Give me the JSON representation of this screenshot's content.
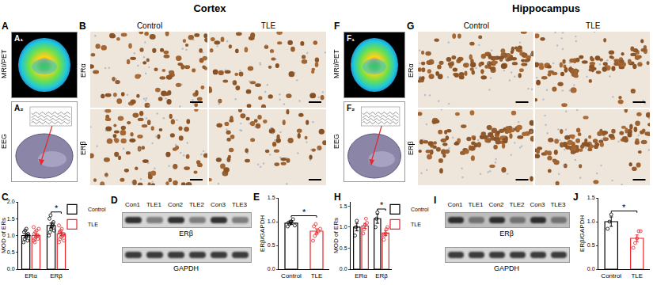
{
  "headers": [
    "Cortex",
    "Hippocampus"
  ],
  "scan_panels": [
    {
      "letter": "A",
      "rows": [
        "MRI/PET",
        "EEG"
      ],
      "insets": [
        "A₁",
        "A₂"
      ]
    },
    {
      "letter": "F",
      "rows": [
        "MRI/PET",
        "EEG"
      ],
      "insets": [
        "F₁",
        "F₂"
      ]
    }
  ],
  "stain_panels": [
    {
      "letter": "B",
      "columns": [
        "Control",
        "TLE"
      ],
      "rows": [
        "ERα",
        "ERβ"
      ]
    },
    {
      "letter": "G",
      "columns": [
        "Control",
        "TLE"
      ],
      "rows": [
        "ERα",
        "ERβ"
      ]
    }
  ],
  "blot_panels": [
    {
      "letter": "D",
      "lanes": [
        "Con1",
        "TLE1",
        "Con2",
        "TLE2",
        "Con3",
        "TLE3"
      ],
      "rows": [
        "ERβ",
        "GAPDH"
      ]
    },
    {
      "letter": "I",
      "lanes": [
        "Con1",
        "TLE1",
        "Con2",
        "TLE2",
        "Con3",
        "TLE3"
      ],
      "rows": [
        "ERβ",
        "GAPDH"
      ]
    }
  ],
  "chart_data": [
    {
      "type": "bar",
      "title": "C",
      "ylabel": "MOD of ERs",
      "categories": [
        "ERα",
        "ERβ"
      ],
      "series": [
        {
          "name": "Control",
          "color": "#000000",
          "values": [
            1.0,
            1.3
          ],
          "errors": [
            0.05,
            0.07
          ],
          "points": [
            [
              0.8,
              0.9,
              0.95,
              1.0,
              1.05,
              1.1,
              1.15,
              1.2,
              0.85,
              1.0
            ],
            [
              1.0,
              1.1,
              1.2,
              1.3,
              1.4,
              1.5,
              1.6,
              1.25,
              1.35,
              1.15
            ]
          ]
        },
        {
          "name": "TLE",
          "color": "#e8262b",
          "values": [
            1.0,
            1.05
          ],
          "errors": [
            0.04,
            0.05
          ],
          "points": [
            [
              0.85,
              0.9,
              0.95,
              1.0,
              1.0,
              1.05,
              1.1,
              1.15,
              0.9,
              1.2,
              1.25,
              0.8
            ],
            [
              0.8,
              0.9,
              0.95,
              1.0,
              1.05,
              1.1,
              1.15,
              1.2,
              1.0,
              0.85,
              1.3,
              1.1
            ]
          ]
        }
      ],
      "ylim": [
        0,
        2.0
      ],
      "yticks": [
        {
          "value": 0,
          "label": "0.0"
        },
        {
          "value": 0.5,
          "label": "0.5"
        },
        {
          "value": 1.0,
          "label": "1.0"
        },
        {
          "value": 1.5,
          "label": "1.5"
        },
        {
          "value": 2.0,
          "label": "2.0"
        }
      ],
      "legend": "upper right",
      "annotations": [
        {
          "text": "*",
          "categories": [
            "ERβ"
          ]
        }
      ]
    },
    {
      "type": "bar",
      "title": "E",
      "ylabel": "ERβ/GAPDH",
      "categories": [
        "Control",
        "TLE"
      ],
      "values": [
        0.97,
        0.8
      ],
      "errors": [
        0.03,
        0.05
      ],
      "colors": [
        "#000000",
        "#e8262b"
      ],
      "points": [
        [
          0.9,
          0.95,
          1.0,
          1.05,
          0.92,
          0.98,
          1.0
        ],
        [
          0.6,
          0.7,
          0.75,
          0.8,
          0.85,
          0.9,
          0.95
        ]
      ],
      "ylim": [
        0,
        1.5
      ],
      "yticks": [
        {
          "value": 0,
          "label": "0.0"
        },
        {
          "value": 0.5,
          "label": "0.5"
        },
        {
          "value": 1.0,
          "label": "1.0"
        },
        {
          "value": 1.5,
          "label": "1.5"
        }
      ],
      "annotations": [
        {
          "text": "*",
          "categories": [
            "Control",
            "TLE"
          ]
        }
      ]
    },
    {
      "type": "bar",
      "title": "H",
      "ylabel": "MOD of ERs",
      "categories": [
        "ERα",
        "ERβ"
      ],
      "series": [
        {
          "name": "Control",
          "color": "#000000",
          "values": [
            1.0,
            1.2
          ],
          "errors": [
            0.09,
            0.11
          ],
          "points": [
            [
              0.8,
              1.0,
              1.15
            ],
            [
              1.0,
              1.2,
              1.35
            ]
          ]
        },
        {
          "name": "TLE",
          "color": "#e8262b",
          "values": [
            1.03,
            0.86
          ],
          "errors": [
            0.06,
            0.06
          ],
          "points": [
            [
              0.85,
              0.95,
              1.05,
              1.2,
              1.1
            ],
            [
              0.7,
              0.8,
              0.85,
              0.95,
              1.0
            ]
          ]
        }
      ],
      "ylim": [
        0,
        1.6
      ],
      "yticks": [
        {
          "value": 0,
          "label": "0.0"
        },
        {
          "value": 0.5,
          "label": "0.5"
        },
        {
          "value": 1.0,
          "label": "1.0"
        },
        {
          "value": 1.5,
          "label": "1.5"
        }
      ],
      "legend": "upper right",
      "annotations": [
        {
          "text": "*",
          "categories": [
            "ERβ"
          ]
        }
      ]
    },
    {
      "type": "bar",
      "title": "J",
      "ylabel": "ERβ/GAPDH",
      "categories": [
        "Control",
        "TLE"
      ],
      "values": [
        1.0,
        0.65
      ],
      "errors": [
        0.1,
        0.07
      ],
      "colors": [
        "#000000",
        "#e8262b"
      ],
      "points": [
        [
          0.85,
          1.0,
          1.15
        ],
        [
          0.45,
          0.55,
          0.65,
          0.8,
          0.8
        ]
      ],
      "ylim": [
        0,
        1.5
      ],
      "yticks": [
        {
          "value": 0,
          "label": "0.0"
        },
        {
          "value": 0.5,
          "label": "0.5"
        },
        {
          "value": 1.0,
          "label": "1.0"
        },
        {
          "value": 1.5,
          "label": "1.5"
        }
      ],
      "annotations": [
        {
          "text": "*",
          "categories": [
            "Control",
            "TLE"
          ]
        }
      ]
    }
  ]
}
